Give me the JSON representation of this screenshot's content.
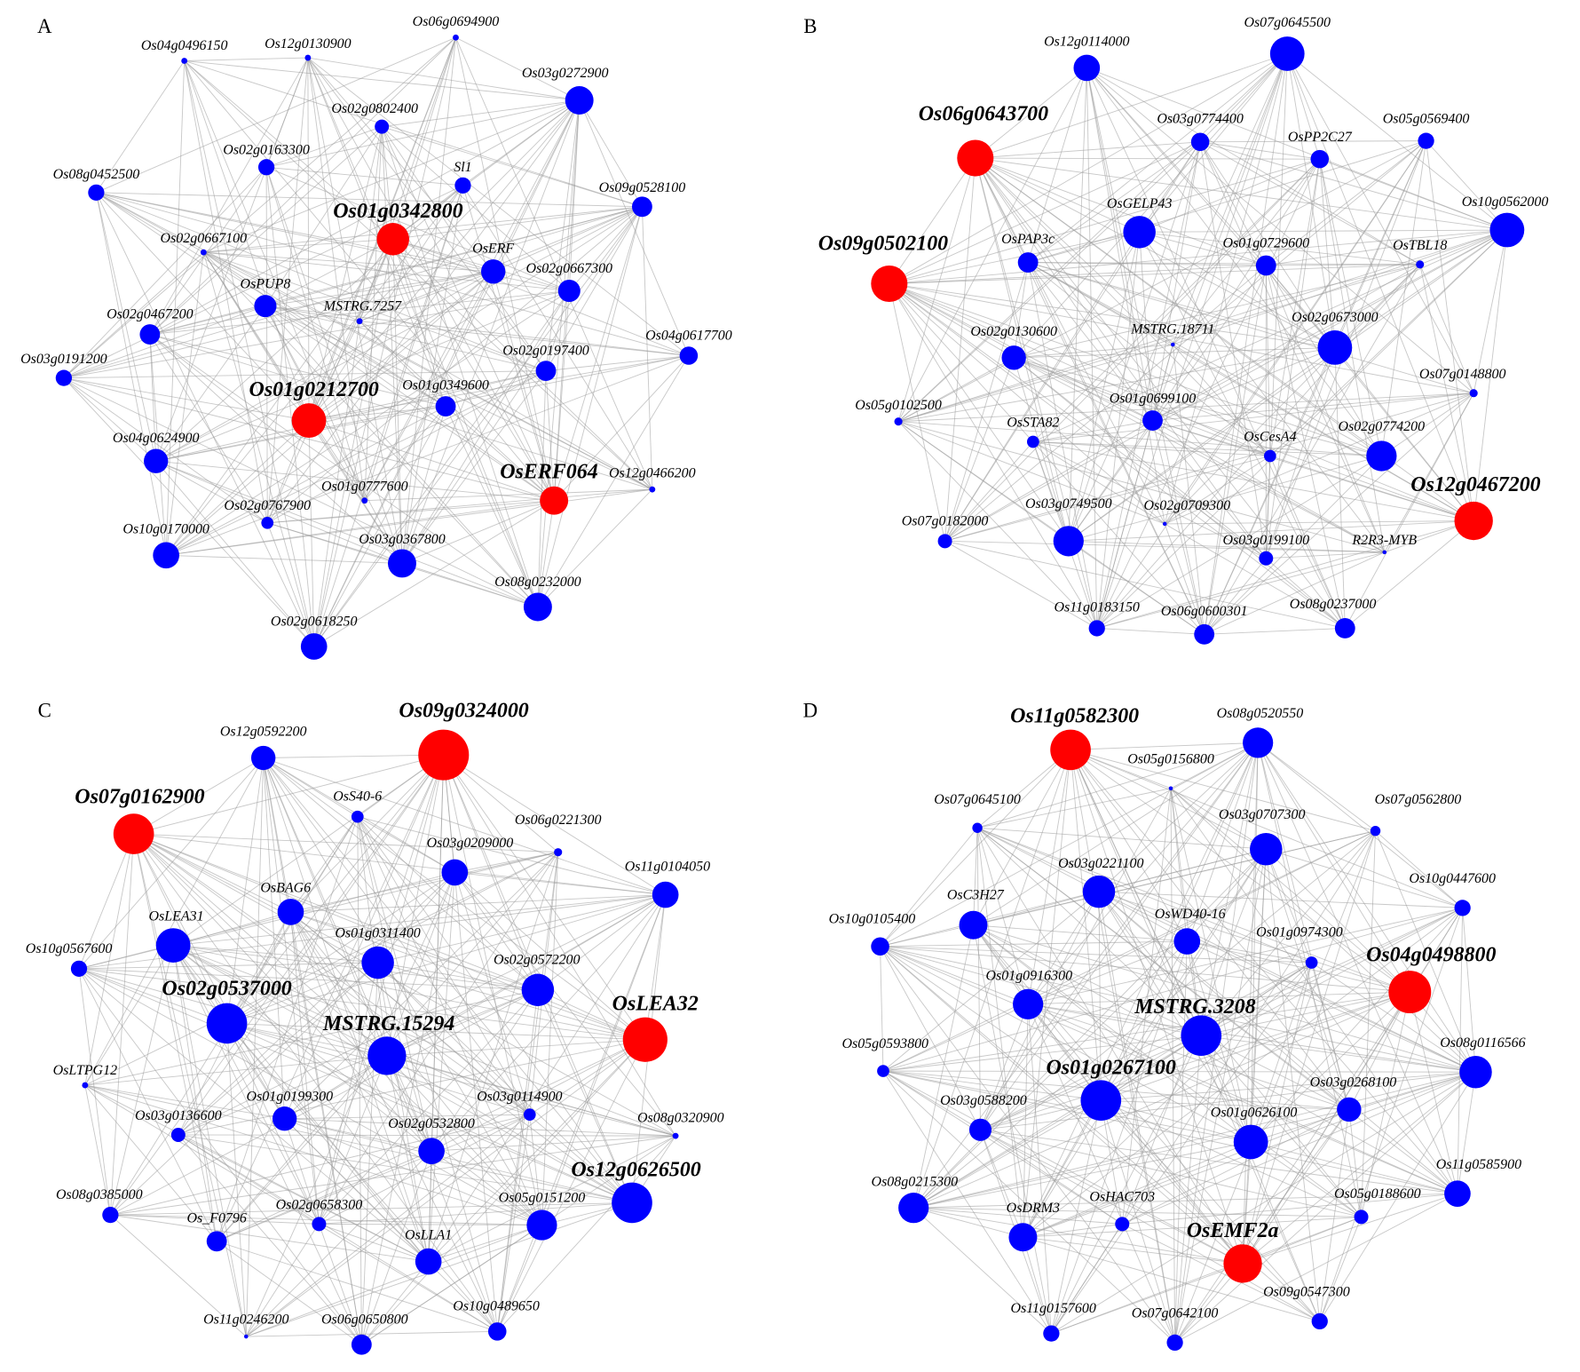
{
  "panels": [
    {
      "label": "A",
      "nodes": [
        {
          "label": "Os04g0496150",
          "color": "#0000ff"
        },
        {
          "label": "Os12g0130900",
          "color": "#0000ff"
        },
        {
          "label": "Os06g0694900",
          "color": "#0000ff"
        },
        {
          "label": "Os03g0272900",
          "color": "#0000ff"
        },
        {
          "label": "Os02g0802400",
          "color": "#0000ff"
        },
        {
          "label": "Os02g0163300",
          "color": "#0000ff"
        },
        {
          "label": "Sl1",
          "color": "#0000ff"
        },
        {
          "label": "Os08g0452500",
          "color": "#0000ff"
        },
        {
          "label": "Os09g0528100",
          "color": "#0000ff"
        },
        {
          "label": "Os01g0342800",
          "color": "#ff0000"
        },
        {
          "label": "Os02g0667100",
          "color": "#0000ff"
        },
        {
          "label": "OsERF",
          "color": "#0000ff"
        },
        {
          "label": "Os02g0667300",
          "color": "#0000ff"
        },
        {
          "label": "OsPUP8",
          "color": "#0000ff"
        },
        {
          "label": "MSTRG.7257",
          "color": "#0000ff"
        },
        {
          "label": "Os02g0467200",
          "color": "#0000ff"
        },
        {
          "label": "Os04g0617700",
          "color": "#0000ff"
        },
        {
          "label": "Os03g0191200",
          "color": "#0000ff"
        },
        {
          "label": "Os02g0197400",
          "color": "#0000ff"
        },
        {
          "label": "Os01g0212700",
          "color": "#ff0000"
        },
        {
          "label": "Os01g0349600",
          "color": "#0000ff"
        },
        {
          "label": "Os04g0624900",
          "color": "#0000ff"
        },
        {
          "label": "OsERF064",
          "color": "#ff0000"
        },
        {
          "label": "Os12g0466200",
          "color": "#0000ff"
        },
        {
          "label": "Os01g0777600",
          "color": "#0000ff"
        },
        {
          "label": "Os02g0767900",
          "color": "#0000ff"
        },
        {
          "label": "Os10g0170000",
          "color": "#0000ff"
        },
        {
          "label": "Os03g0367800",
          "color": "#0000ff"
        },
        {
          "label": "Os08g0232000",
          "color": "#0000ff"
        },
        {
          "label": "Os02g0618250",
          "color": "#0000ff"
        }
      ]
    },
    {
      "label": "B",
      "nodes": [
        {
          "label": "Os12g0114000",
          "color": "#0000ff"
        },
        {
          "label": "Os07g0645500",
          "color": "#0000ff"
        },
        {
          "label": "Os06g0643700",
          "color": "#ff0000"
        },
        {
          "label": "Os03g0774400",
          "color": "#0000ff"
        },
        {
          "label": "OsPP2C27",
          "color": "#0000ff"
        },
        {
          "label": "Os05g0569400",
          "color": "#0000ff"
        },
        {
          "label": "OsGELP43",
          "color": "#0000ff"
        },
        {
          "label": "Os10g0562000",
          "color": "#0000ff"
        },
        {
          "label": "OsPAP3c",
          "color": "#0000ff"
        },
        {
          "label": "Os01g0729600",
          "color": "#0000ff"
        },
        {
          "label": "OsTBL18",
          "color": "#0000ff"
        },
        {
          "label": "Os09g0502100",
          "color": "#ff0000"
        },
        {
          "label": "MSTRG.18711",
          "color": "#0000ff"
        },
        {
          "label": "Os02g0673000",
          "color": "#0000ff"
        },
        {
          "label": "Os02g0130600",
          "color": "#0000ff"
        },
        {
          "label": "Os07g0148800",
          "color": "#0000ff"
        },
        {
          "label": "Os05g0102500",
          "color": "#0000ff"
        },
        {
          "label": "OsSTA82",
          "color": "#0000ff"
        },
        {
          "label": "Os01g0699100",
          "color": "#0000ff"
        },
        {
          "label": "OsCesA4",
          "color": "#0000ff"
        },
        {
          "label": "Os02g0774200",
          "color": "#0000ff"
        },
        {
          "label": "Os12g0467200",
          "color": "#ff0000"
        },
        {
          "label": "Os07g0182000",
          "color": "#0000ff"
        },
        {
          "label": "Os03g0749500",
          "color": "#0000ff"
        },
        {
          "label": "Os02g0709300",
          "color": "#0000ff"
        },
        {
          "label": "Os03g0199100",
          "color": "#0000ff"
        },
        {
          "label": "R2R3-MYB",
          "color": "#0000ff"
        },
        {
          "label": "Os11g0183150",
          "color": "#0000ff"
        },
        {
          "label": "Os06g0600301",
          "color": "#0000ff"
        },
        {
          "label": "Os08g0237000",
          "color": "#0000ff"
        }
      ]
    },
    {
      "label": "C",
      "nodes": [
        {
          "label": "Os12g0592200",
          "color": "#0000ff"
        },
        {
          "label": "Os09g0324000",
          "color": "#ff0000"
        },
        {
          "label": "Os07g0162900",
          "color": "#ff0000"
        },
        {
          "label": "OsS40-6",
          "color": "#0000ff"
        },
        {
          "label": "Os06g0221300",
          "color": "#0000ff"
        },
        {
          "label": "Os03g0209000",
          "color": "#0000ff"
        },
        {
          "label": "Os11g0104050",
          "color": "#0000ff"
        },
        {
          "label": "OsBAG6",
          "color": "#0000ff"
        },
        {
          "label": "OsLEA31",
          "color": "#0000ff"
        },
        {
          "label": "Os01g0311400",
          "color": "#0000ff"
        },
        {
          "label": "Os10g0567600",
          "color": "#0000ff"
        },
        {
          "label": "Os02g0572200",
          "color": "#0000ff"
        },
        {
          "label": "OsLEA32",
          "color": "#ff0000"
        },
        {
          "label": "Os02g0537000",
          "color": "#0000ff"
        },
        {
          "label": "MSTRG.15294",
          "color": "#0000ff"
        },
        {
          "label": "OsLTPG12",
          "color": "#0000ff"
        },
        {
          "label": "Os01g0199300",
          "color": "#0000ff"
        },
        {
          "label": "Os03g0114900",
          "color": "#0000ff"
        },
        {
          "label": "Os03g0136600",
          "color": "#0000ff"
        },
        {
          "label": "Os08g0320900",
          "color": "#0000ff"
        },
        {
          "label": "Os02g0532800",
          "color": "#0000ff"
        },
        {
          "label": "Os12g0626500",
          "color": "#0000ff"
        },
        {
          "label": "Os08g0385000",
          "color": "#0000ff"
        },
        {
          "label": "Os05g0151200",
          "color": "#0000ff"
        },
        {
          "label": "Os_F0796",
          "color": "#0000ff"
        },
        {
          "label": "Os02g0658300",
          "color": "#0000ff"
        },
        {
          "label": "OsLLA1",
          "color": "#0000ff"
        },
        {
          "label": "Os11g0246200",
          "color": "#0000ff"
        },
        {
          "label": "Os06g0650800",
          "color": "#0000ff"
        },
        {
          "label": "Os10g0489650",
          "color": "#0000ff"
        }
      ]
    },
    {
      "label": "D",
      "nodes": [
        {
          "label": "Os11g0582300",
          "color": "#ff0000"
        },
        {
          "label": "Os08g0520550",
          "color": "#0000ff"
        },
        {
          "label": "Os05g0156800",
          "color": "#0000ff"
        },
        {
          "label": "Os07g0645100",
          "color": "#0000ff"
        },
        {
          "label": "Os07g0562800",
          "color": "#0000ff"
        },
        {
          "label": "Os03g0707300",
          "color": "#0000ff"
        },
        {
          "label": "Os10g0447600",
          "color": "#0000ff"
        },
        {
          "label": "Os03g0221100",
          "color": "#0000ff"
        },
        {
          "label": "OsC3H27",
          "color": "#0000ff"
        },
        {
          "label": "OsWD40-16",
          "color": "#0000ff"
        },
        {
          "label": "Os01g0974300",
          "color": "#0000ff"
        },
        {
          "label": "Os10g0105400",
          "color": "#0000ff"
        },
        {
          "label": "Os04g0498800",
          "color": "#ff0000"
        },
        {
          "label": "Os01g0916300",
          "color": "#0000ff"
        },
        {
          "label": "MSTRG.3208",
          "color": "#0000ff"
        },
        {
          "label": "Os08g0116566",
          "color": "#0000ff"
        },
        {
          "label": "Os05g0593800",
          "color": "#0000ff"
        },
        {
          "label": "Os01g0267100",
          "color": "#0000ff"
        },
        {
          "label": "Os03g0268100",
          "color": "#0000ff"
        },
        {
          "label": "Os03g0588200",
          "color": "#0000ff"
        },
        {
          "label": "Os01g0626100",
          "color": "#0000ff"
        },
        {
          "label": "Os11g0585900",
          "color": "#0000ff"
        },
        {
          "label": "Os08g0215300",
          "color": "#0000ff"
        },
        {
          "label": "Os05g0188600",
          "color": "#0000ff"
        },
        {
          "label": "OsHAC703",
          "color": "#0000ff"
        },
        {
          "label": "OsDRM3",
          "color": "#0000ff"
        },
        {
          "label": "OsEMF2a",
          "color": "#ff0000"
        },
        {
          "label": "Os09g0547300",
          "color": "#0000ff"
        },
        {
          "label": "Os11g0157600",
          "color": "#0000ff"
        },
        {
          "label": "Os07g0642100",
          "color": "#0000ff"
        }
      ]
    }
  ]
}
